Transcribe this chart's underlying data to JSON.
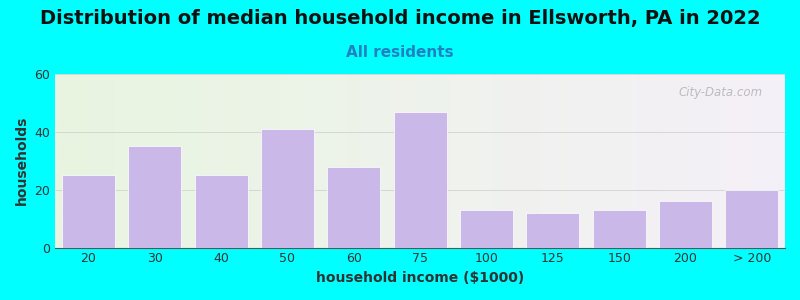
{
  "title": "Distribution of median household income in Ellsworth, PA in 2022",
  "subtitle": "All residents",
  "xlabel": "household income ($1000)",
  "ylabel": "households",
  "background_color": "#00FFFF",
  "plot_bg_left": "#e8f5e0",
  "plot_bg_right": "#f5f0f8",
  "bar_color": "#c9b8e8",
  "bar_edgecolor": "#ffffff",
  "categories": [
    "20",
    "30",
    "40",
    "50",
    "60",
    "75",
    "100",
    "125",
    "150",
    "200",
    "> 200"
  ],
  "values": [
    25,
    35,
    25,
    41,
    28,
    47,
    13,
    12,
    13,
    16,
    20
  ],
  "ylim": [
    0,
    60
  ],
  "yticks": [
    0,
    20,
    40,
    60
  ],
  "watermark": "City-Data.com",
  "title_fontsize": 14,
  "subtitle_fontsize": 11,
  "label_fontsize": 10,
  "tick_fontsize": 9
}
